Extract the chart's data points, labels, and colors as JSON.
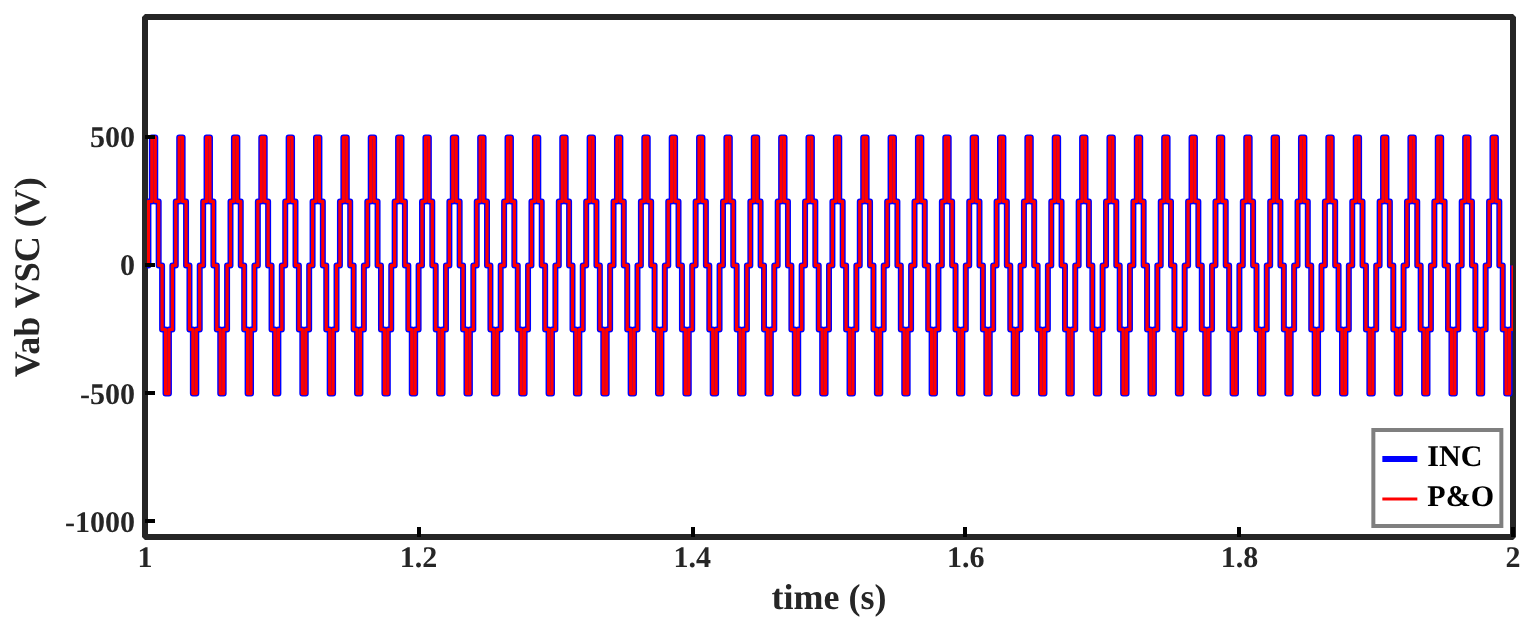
{
  "chart_data": {
    "type": "step",
    "xlabel": "time (s)",
    "ylabel": "Vab VSC (V)",
    "xlim": [
      1,
      2
    ],
    "xticks": [
      1,
      {
        "value": 1.2,
        "label": "1.2"
      },
      {
        "value": 1.4,
        "label": "1.4"
      },
      {
        "value": 1.6,
        "label": "1.6"
      },
      {
        "value": 1.8,
        "label": "1.8"
      },
      2
    ],
    "ylim": [
      -1060,
      970
    ],
    "yticks": [
      -1000,
      -500,
      0,
      500
    ],
    "grid": false,
    "legend": "bottom right",
    "marker": "none",
    "line_style": "solid",
    "x": [
      1,
      1.0025,
      1.005,
      1.0075,
      1.01,
      1.0125,
      1.015,
      1.0175,
      1.02,
      1.0225,
      1.025,
      1.0275,
      1.03,
      1.0325,
      1.035,
      1.0375,
      1.04,
      1.0425,
      1.045,
      1.0475,
      1.05,
      1.0525,
      1.055,
      1.0575,
      1.06,
      1.0625,
      1.065,
      1.0675,
      1.07,
      1.0725,
      1.075,
      1.0775,
      1.08,
      1.0825,
      1.085,
      1.0875,
      1.09,
      1.0925,
      1.095,
      1.0975,
      1.1,
      1.1025,
      1.105,
      1.1075,
      1.11,
      1.1125,
      1.115,
      1.1175,
      1.12,
      1.1225,
      1.125,
      1.1275,
      1.13,
      1.1325,
      1.135,
      1.1375,
      1.14,
      1.1425,
      1.145,
      1.1475,
      1.15,
      1.1525,
      1.155,
      1.1575,
      1.16,
      1.1625,
      1.165,
      1.1675,
      1.17,
      1.1725,
      1.175,
      1.1775,
      1.18,
      1.1825,
      1.185,
      1.1875,
      1.19,
      1.1925,
      1.195,
      1.1975,
      1.2,
      1.2025,
      1.205,
      1.2075,
      1.21,
      1.2125,
      1.215,
      1.2175,
      1.22,
      1.2225,
      1.225,
      1.2275,
      1.23,
      1.2325,
      1.235,
      1.2375,
      1.24,
      1.2425,
      1.245,
      1.2475,
      1.25,
      1.2525,
      1.255,
      1.2575,
      1.26,
      1.2625,
      1.265,
      1.2675,
      1.27,
      1.2725,
      1.275,
      1.2775,
      1.28,
      1.2825,
      1.285,
      1.2875,
      1.29,
      1.2925,
      1.295,
      1.2975,
      1.3,
      1.3025,
      1.305,
      1.3075,
      1.31,
      1.3125,
      1.315,
      1.3175,
      1.32,
      1.3225,
      1.325,
      1.3275,
      1.33,
      1.3325,
      1.335,
      1.3375,
      1.34,
      1.3425,
      1.345,
      1.3475,
      1.35,
      1.3525,
      1.355,
      1.3575,
      1.36,
      1.3625,
      1.365,
      1.3675,
      1.37,
      1.3725,
      1.375,
      1.3775,
      1.38,
      1.3825,
      1.385,
      1.3875,
      1.39,
      1.3925,
      1.395,
      1.3975,
      1.4,
      1.4025,
      1.405,
      1.4075,
      1.41,
      1.4125,
      1.415,
      1.4175,
      1.42,
      1.4225,
      1.425,
      1.4275,
      1.43,
      1.4325,
      1.435,
      1.4375,
      1.44,
      1.4425,
      1.445,
      1.4475,
      1.45,
      1.4525,
      1.455,
      1.4575,
      1.46,
      1.4625,
      1.465,
      1.4675,
      1.47,
      1.4725,
      1.475,
      1.4775,
      1.48,
      1.4825,
      1.485,
      1.4875,
      1.49,
      1.4925,
      1.495,
      1.4975,
      1.5,
      1.5025,
      1.505,
      1.5075,
      1.51,
      1.5125,
      1.515,
      1.5175,
      1.52,
      1.5225,
      1.525,
      1.5275,
      1.53,
      1.5325,
      1.535,
      1.5375,
      1.54,
      1.5425,
      1.545,
      1.5475,
      1.55,
      1.5525,
      1.555,
      1.5575,
      1.56,
      1.5625,
      1.565,
      1.5675,
      1.57,
      1.5725,
      1.575,
      1.5775,
      1.58,
      1.5825,
      1.585,
      1.5875,
      1.59,
      1.5925,
      1.595,
      1.5975,
      1.6,
      1.6025,
      1.605,
      1.6075,
      1.61,
      1.6125,
      1.615,
      1.6175,
      1.62,
      1.6225,
      1.625,
      1.6275,
      1.63,
      1.6325,
      1.635,
      1.6375,
      1.64,
      1.6425,
      1.645,
      1.6475,
      1.65,
      1.6525,
      1.655,
      1.6575,
      1.66,
      1.6625,
      1.665,
      1.6675,
      1.67,
      1.6725,
      1.675,
      1.6775,
      1.68,
      1.6825,
      1.685,
      1.6875,
      1.69,
      1.6925,
      1.695,
      1.6975,
      1.7,
      1.7025,
      1.705,
      1.7075,
      1.71,
      1.7125,
      1.715,
      1.7175,
      1.72,
      1.7225,
      1.725,
      1.7275,
      1.73,
      1.7325,
      1.735,
      1.7375,
      1.74,
      1.7425,
      1.745,
      1.7475,
      1.75,
      1.7525,
      1.755,
      1.7575,
      1.76,
      1.7625,
      1.765,
      1.7675,
      1.77,
      1.7725,
      1.775,
      1.7775,
      1.78,
      1.7825,
      1.785,
      1.7875,
      1.79,
      1.7925,
      1.795,
      1.7975,
      1.8,
      1.8025,
      1.805,
      1.8075,
      1.81,
      1.8125,
      1.815,
      1.8175,
      1.82,
      1.8225,
      1.825,
      1.8275,
      1.83,
      1.8325,
      1.835,
      1.8375,
      1.84,
      1.8425,
      1.845,
      1.8475,
      1.85,
      1.8525,
      1.855,
      1.8575,
      1.86,
      1.8625,
      1.865,
      1.8675,
      1.87,
      1.8725,
      1.875,
      1.8775,
      1.88,
      1.8825,
      1.885,
      1.8875,
      1.89,
      1.8925,
      1.895,
      1.8975,
      1.9,
      1.9025,
      1.905,
      1.9075,
      1.91,
      1.9125,
      1.915,
      1.9175,
      1.92,
      1.9225,
      1.925,
      1.9275,
      1.93,
      1.9325,
      1.935,
      1.9375,
      1.94,
      1.9425,
      1.945,
      1.9475,
      1.95,
      1.9525,
      1.955,
      1.9575,
      1.96,
      1.9625,
      1.965,
      1.9675,
      1.97,
      1.9725,
      1.975,
      1.9775,
      1.98,
      1.9825,
      1.985,
      1.9875,
      1.99,
      1.9925,
      1.995,
      1.9975,
      2
    ],
    "series": [
      {
        "name": "INC",
        "color": "#0000ff",
        "values": [
          0,
          250,
          500,
          250,
          0,
          -250,
          -500,
          -250,
          0,
          250,
          500,
          250,
          0,
          -250,
          -500,
          -250,
          0,
          250,
          500,
          250,
          0,
          -250,
          -500,
          -250,
          0,
          250,
          500,
          250,
          0,
          -250,
          -500,
          -250,
          0,
          250,
          500,
          250,
          0,
          -250,
          -500,
          -250,
          0,
          250,
          500,
          250,
          0,
          -250,
          -500,
          -250,
          0,
          250,
          500,
          250,
          0,
          -250,
          -500,
          -250,
          0,
          250,
          500,
          250,
          0,
          -250,
          -500,
          -250,
          0,
          250,
          500,
          250,
          0,
          -250,
          -500,
          -250,
          0,
          250,
          500,
          250,
          0,
          -250,
          -500,
          -250,
          0,
          250,
          500,
          250,
          0,
          -250,
          -500,
          -250,
          0,
          250,
          500,
          250,
          0,
          -250,
          -500,
          -250,
          0,
          250,
          500,
          250,
          0,
          -250,
          -500,
          -250,
          0,
          250,
          500,
          250,
          0,
          -250,
          -500,
          -250,
          0,
          250,
          500,
          250,
          0,
          -250,
          -500,
          -250,
          0,
          250,
          500,
          250,
          0,
          -250,
          -500,
          -250,
          0,
          250,
          500,
          250,
          0,
          -250,
          -500,
          -250,
          0,
          250,
          500,
          250,
          0,
          -250,
          -500,
          -250,
          0,
          250,
          500,
          250,
          0,
          -250,
          -500,
          -250,
          0,
          250,
          500,
          250,
          0,
          -250,
          -500,
          -250,
          0,
          250,
          500,
          250,
          0,
          -250,
          -500,
          -250,
          0,
          250,
          500,
          250,
          0,
          -250,
          -500,
          -250,
          0,
          250,
          500,
          250,
          0,
          -250,
          -500,
          -250,
          0,
          250,
          500,
          250,
          0,
          -250,
          -500,
          -250,
          0,
          250,
          500,
          250,
          0,
          -250,
          -500,
          -250,
          0,
          250,
          500,
          250,
          0,
          -250,
          -500,
          -250,
          0,
          250,
          500,
          250,
          0,
          -250,
          -500,
          -250,
          0,
          250,
          500,
          250,
          0,
          -250,
          -500,
          -250,
          0,
          250,
          500,
          250,
          0,
          -250,
          -500,
          -250,
          0,
          250,
          500,
          250,
          0,
          -250,
          -500,
          -250,
          0,
          250,
          500,
          250,
          0,
          -250,
          -500,
          -250,
          0,
          250,
          500,
          250,
          0,
          -250,
          -500,
          -250,
          0,
          250,
          500,
          250,
          0,
          -250,
          -500,
          -250,
          0,
          250,
          500,
          250,
          0,
          -250,
          -500,
          -250,
          0,
          250,
          500,
          250,
          0,
          -250,
          -500,
          -250,
          0,
          250,
          500,
          250,
          0,
          -250,
          -500,
          -250,
          0,
          250,
          500,
          250,
          0,
          -250,
          -500,
          -250,
          0,
          250,
          500,
          250,
          0,
          -250,
          -500,
          -250,
          0,
          250,
          500,
          250,
          0,
          -250,
          -500,
          -250,
          0,
          250,
          500,
          250,
          0,
          -250,
          -500,
          -250,
          0,
          250,
          500,
          250,
          0,
          -250,
          -500,
          -250,
          0,
          250,
          500,
          250,
          0,
          -250,
          -500,
          -250,
          0,
          250,
          500,
          250,
          0,
          -250,
          -500,
          -250,
          0,
          250,
          500,
          250,
          0,
          -250,
          -500,
          -250,
          0,
          250,
          500,
          250,
          0,
          -250,
          -500,
          -250,
          0,
          250,
          500,
          250,
          0,
          -250,
          -500,
          -250,
          0,
          250,
          500,
          250,
          0,
          -250,
          -500,
          -250,
          0,
          250,
          500,
          250,
          0,
          -250,
          -500,
          -250,
          0,
          250,
          500,
          250,
          0,
          -250,
          -500,
          -250,
          0,
          250,
          500,
          250,
          0,
          -250,
          -500,
          -250,
          0
        ]
      },
      {
        "name": "P&O",
        "color": "#ff0000",
        "values": [
          0,
          250,
          500,
          250,
          0,
          -250,
          -500,
          -250,
          0,
          250,
          500,
          250,
          0,
          -250,
          -500,
          -250,
          0,
          250,
          500,
          250,
          0,
          -250,
          -500,
          -250,
          0,
          250,
          500,
          250,
          0,
          -250,
          -500,
          -250,
          0,
          250,
          500,
          250,
          0,
          -250,
          -500,
          -250,
          0,
          250,
          500,
          250,
          0,
          -250,
          -500,
          -250,
          0,
          250,
          500,
          250,
          0,
          -250,
          -500,
          -250,
          0,
          250,
          500,
          250,
          0,
          -250,
          -500,
          -250,
          0,
          250,
          500,
          250,
          0,
          -250,
          -500,
          -250,
          0,
          250,
          500,
          250,
          0,
          -250,
          -500,
          -250,
          0,
          250,
          500,
          250,
          0,
          -250,
          -500,
          -250,
          0,
          250,
          500,
          250,
          0,
          -250,
          -500,
          -250,
          0,
          250,
          500,
          250,
          0,
          -250,
          -500,
          -250,
          0,
          250,
          500,
          250,
          0,
          -250,
          -500,
          -250,
          0,
          250,
          500,
          250,
          0,
          -250,
          -500,
          -250,
          0,
          250,
          500,
          250,
          0,
          -250,
          -500,
          -250,
          0,
          250,
          500,
          250,
          0,
          -250,
          -500,
          -250,
          0,
          250,
          500,
          250,
          0,
          -250,
          -500,
          -250,
          0,
          250,
          500,
          250,
          0,
          -250,
          -500,
          -250,
          0,
          250,
          500,
          250,
          0,
          -250,
          -500,
          -250,
          0,
          250,
          500,
          250,
          0,
          -250,
          -500,
          -250,
          0,
          250,
          500,
          250,
          0,
          -250,
          -500,
          -250,
          0,
          250,
          500,
          250,
          0,
          -250,
          -500,
          -250,
          0,
          250,
          500,
          250,
          0,
          -250,
          -500,
          -250,
          0,
          250,
          500,
          250,
          0,
          -250,
          -500,
          -250,
          0,
          250,
          500,
          250,
          0,
          -250,
          -500,
          -250,
          0,
          250,
          500,
          250,
          0,
          -250,
          -500,
          -250,
          0,
          250,
          500,
          250,
          0,
          -250,
          -500,
          -250,
          0,
          250,
          500,
          250,
          0,
          -250,
          -500,
          -250,
          0,
          250,
          500,
          250,
          0,
          -250,
          -500,
          -250,
          0,
          250,
          500,
          250,
          0,
          -250,
          -500,
          -250,
          0,
          250,
          500,
          250,
          0,
          -250,
          -500,
          -250,
          0,
          250,
          500,
          250,
          0,
          -250,
          -500,
          -250,
          0,
          250,
          500,
          250,
          0,
          -250,
          -500,
          -250,
          0,
          250,
          500,
          250,
          0,
          -250,
          -500,
          -250,
          0,
          250,
          500,
          250,
          0,
          -250,
          -500,
          -250,
          0,
          250,
          500,
          250,
          0,
          -250,
          -500,
          -250,
          0,
          250,
          500,
          250,
          0,
          -250,
          -500,
          -250,
          0,
          250,
          500,
          250,
          0,
          -250,
          -500,
          -250,
          0,
          250,
          500,
          250,
          0,
          -250,
          -500,
          -250,
          0,
          250,
          500,
          250,
          0,
          -250,
          -500,
          -250,
          0,
          250,
          500,
          250,
          0,
          -250,
          -500,
          -250,
          0,
          250,
          500,
          250,
          0,
          -250,
          -500,
          -250,
          0,
          250,
          500,
          250,
          0,
          -250,
          -500,
          -250,
          0,
          250,
          500,
          250,
          0,
          -250,
          -500,
          -250,
          0,
          250,
          500,
          250,
          0,
          -250,
          -500,
          -250,
          0,
          250,
          500,
          250,
          0,
          -250,
          -500,
          -250,
          0,
          250,
          500,
          250,
          0,
          -250,
          -500,
          -250,
          0,
          250,
          500,
          250,
          0,
          -250,
          -500,
          -250,
          0,
          250,
          500,
          250,
          0,
          -250,
          -500,
          -250,
          0
        ]
      }
    ]
  }
}
